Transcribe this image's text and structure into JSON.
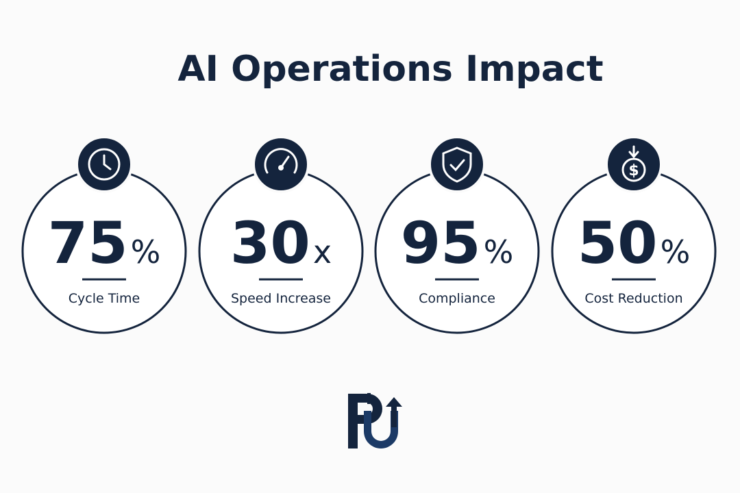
{
  "header": {
    "title": "AI Operations Impact"
  },
  "stats": [
    {
      "value": 75,
      "unit": "%",
      "label": "Cycle Time"
    },
    {
      "value": 30,
      "unit": "x",
      "label": "Speed Increase"
    },
    {
      "value": 95,
      "unit": "%",
      "label": "Compliance"
    },
    {
      "value": 50,
      "unit": "%",
      "label": "Cost Reduction"
    }
  ]
}
